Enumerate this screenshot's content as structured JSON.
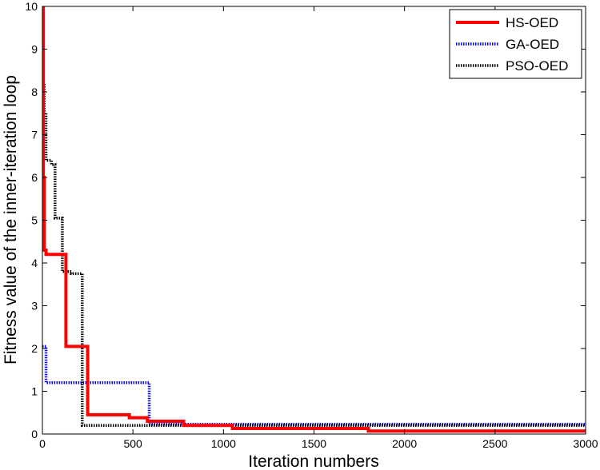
{
  "chart_data": {
    "type": "line",
    "xlabel": "Iteration numbers",
    "ylabel": "Fitness value of the inner-iteration loop",
    "xlim": [
      0,
      3000
    ],
    "ylim": [
      0,
      10
    ],
    "x_ticks": [
      0,
      500,
      1000,
      1500,
      2000,
      2500,
      3000
    ],
    "y_ticks": [
      0,
      1,
      2,
      3,
      4,
      5,
      6,
      7,
      8,
      9,
      10
    ],
    "grid": false,
    "legend_position": "top-right",
    "step": true,
    "series": [
      {
        "name": "HS-OED",
        "color": "#ff0000",
        "style": "solid",
        "x": [
          0,
          5,
          10,
          20,
          130,
          250,
          480,
          580,
          780,
          1050,
          1800,
          3000
        ],
        "y": [
          10,
          6.0,
          4.3,
          4.2,
          2.05,
          0.45,
          0.38,
          0.3,
          0.2,
          0.13,
          0.07,
          0.07
        ]
      },
      {
        "name": "GA-OED",
        "color": "#0000ff",
        "style": "dotted",
        "x": [
          0,
          20,
          590,
          3000
        ],
        "y": [
          2.05,
          1.2,
          0.23,
          0.23
        ]
      },
      {
        "name": "PSO-OED",
        "color": "#000000",
        "style": "dotted",
        "x": [
          0,
          10,
          20,
          50,
          70,
          110,
          160,
          210,
          220,
          3000
        ],
        "y": [
          8.2,
          7.5,
          6.4,
          6.3,
          5.05,
          3.8,
          3.75,
          3.75,
          0.2,
          0.2
        ]
      }
    ]
  }
}
